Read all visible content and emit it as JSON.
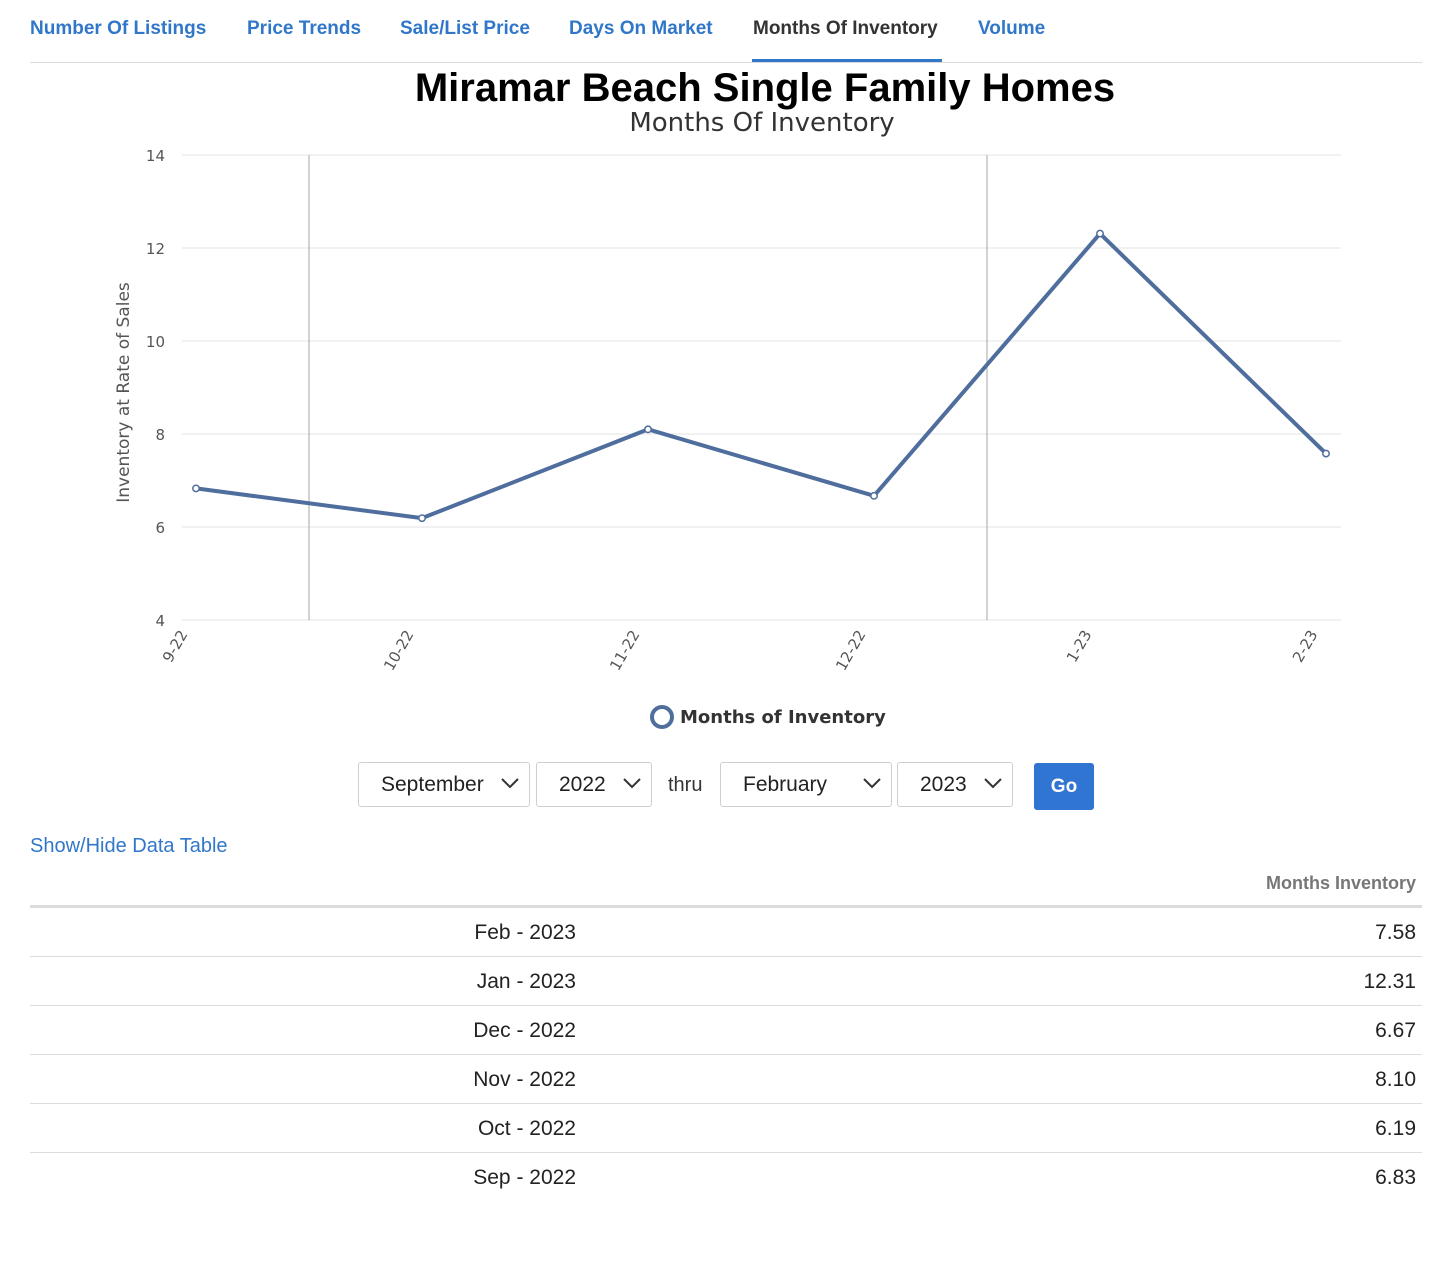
{
  "tabs": [
    {
      "label": "Number Of Listings",
      "active": false
    },
    {
      "label": "Price Trends",
      "active": false
    },
    {
      "label": "Sale/List Price",
      "active": false
    },
    {
      "label": "Days On Market",
      "active": false
    },
    {
      "label": "Months Of Inventory",
      "active": true
    },
    {
      "label": "Volume",
      "active": false
    }
  ],
  "colors": {
    "accent": "#3177c9",
    "series": "#4f6e9d",
    "button": "#2f75d1"
  },
  "chart_data": {
    "type": "line",
    "title": "Miramar Beach Single Family Homes",
    "subtitle": "Months Of Inventory",
    "ylabel": "Inventory at Rate of Sales",
    "xlabel": "",
    "ylim": [
      4,
      14
    ],
    "yticks": [
      "4",
      "6",
      "8",
      "10",
      "12",
      "14"
    ],
    "categories": [
      "9-22",
      "10-22",
      "11-22",
      "12-22",
      "1-23",
      "2-23"
    ],
    "series": [
      {
        "name": "Months of Inventory",
        "values": [
          6.83,
          6.19,
          8.1,
          6.67,
          12.31,
          7.58
        ]
      }
    ],
    "year_dividers_after": [
      "9-22",
      "12-22"
    ],
    "grid": true,
    "legend": "bottom-center"
  },
  "filters": {
    "start_month": "September",
    "start_year": "2022",
    "thru": "thru",
    "end_month": "February",
    "end_year": "2023",
    "go_label": "Go"
  },
  "data_table": {
    "toggle_label": "Show/Hide Data Table",
    "column_header": "Months Inventory",
    "rows": [
      {
        "period": "Feb - 2023",
        "value": "7.58"
      },
      {
        "period": "Jan - 2023",
        "value": "12.31"
      },
      {
        "period": "Dec - 2022",
        "value": "6.67"
      },
      {
        "period": "Nov - 2022",
        "value": "8.10"
      },
      {
        "period": "Oct - 2022",
        "value": "6.19"
      },
      {
        "period": "Sep - 2022",
        "value": "6.83"
      }
    ]
  }
}
